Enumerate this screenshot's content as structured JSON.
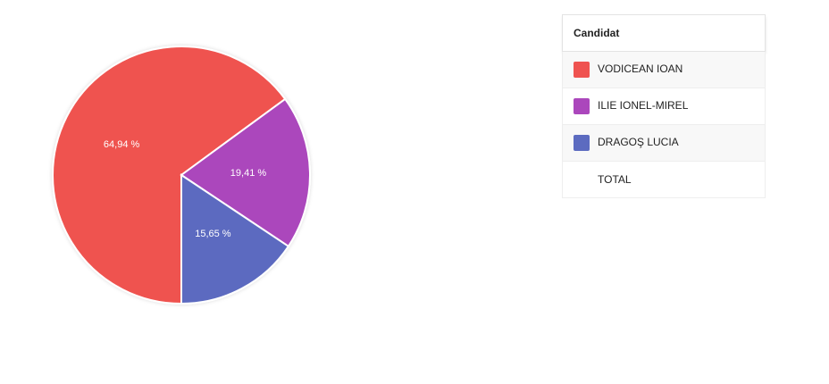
{
  "chart_data": {
    "type": "pie",
    "categories": [
      "VODICEAN IOAN",
      "ILIE IONEL-MIREL",
      "DRAGOŞ LUCIA"
    ],
    "values": [
      64.94,
      19.41,
      15.65
    ],
    "value_labels": [
      "64,94 %",
      "19,41 %",
      "15,65 %"
    ],
    "colors": [
      "#ef5350",
      "#ab47bc",
      "#5c6bc0"
    ],
    "legend_header": "Candidat",
    "total_label": "TOTAL"
  }
}
